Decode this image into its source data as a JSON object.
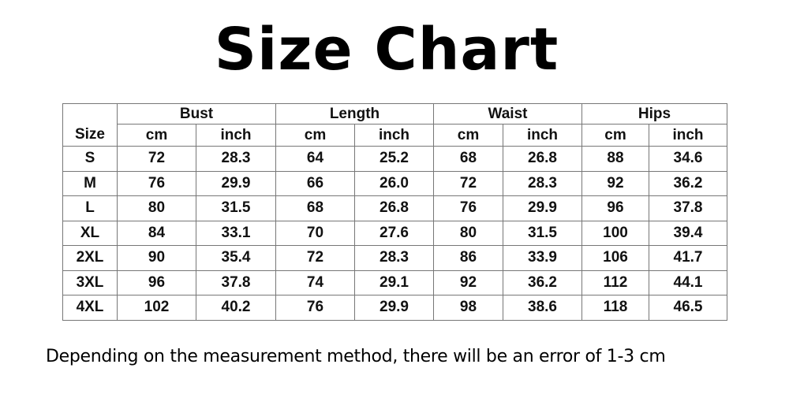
{
  "title": "Size Chart",
  "table": {
    "size_label": "Size",
    "groups": [
      "Bust",
      "Length",
      "Waist",
      "Hips"
    ],
    "units": [
      "cm",
      "inch"
    ],
    "rows": [
      [
        "S",
        "72",
        "28.3",
        "64",
        "25.2",
        "68",
        "26.8",
        "88",
        "34.6"
      ],
      [
        "M",
        "76",
        "29.9",
        "66",
        "26.0",
        "72",
        "28.3",
        "92",
        "36.2"
      ],
      [
        "L",
        "80",
        "31.5",
        "68",
        "26.8",
        "76",
        "29.9",
        "96",
        "37.8"
      ],
      [
        "XL",
        "84",
        "33.1",
        "70",
        "27.6",
        "80",
        "31.5",
        "100",
        "39.4"
      ],
      [
        "2XL",
        "90",
        "35.4",
        "72",
        "28.3",
        "86",
        "33.9",
        "106",
        "41.7"
      ],
      [
        "3XL",
        "96",
        "37.8",
        "74",
        "29.1",
        "92",
        "36.2",
        "112",
        "44.1"
      ],
      [
        "4XL",
        "102",
        "40.2",
        "76",
        "29.9",
        "98",
        "38.6",
        "118",
        "46.5"
      ]
    ]
  },
  "note": "Depending on the measurement method, there will be an error of 1-3 cm"
}
